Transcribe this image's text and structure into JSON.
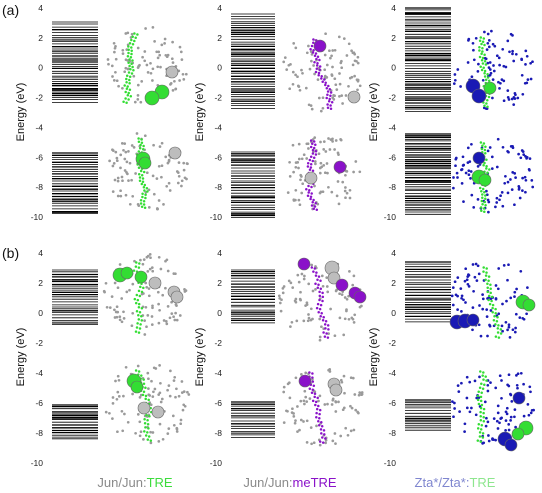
{
  "figure": {
    "panel_labels": [
      "(a)",
      "(b)"
    ],
    "ylabel": "Energy (eV)",
    "yticks": [
      "4",
      "2",
      "0",
      "-2",
      "-4",
      "-6",
      "-8",
      "-10"
    ],
    "captions": [
      {
        "parts": [
          {
            "text": "Jun/Jun:",
            "color": "#8a8a8a"
          },
          {
            "text": "TRE",
            "color": "#3ddc3d"
          }
        ]
      },
      {
        "parts": [
          {
            "text": "Jun/Jun:",
            "color": "#8a8a8a"
          },
          {
            "text": "meTRE",
            "color": "#8a12c9"
          }
        ]
      },
      {
        "parts": [
          {
            "text": "Zta*/Zta*:",
            "color": "#7f86cf"
          },
          {
            "text": "TRE",
            "color": "#8ee68e"
          }
        ]
      }
    ],
    "colors": {
      "jun": "#9a9a9a",
      "tre": "#33dd33",
      "metre": "#8a12c9",
      "zta": "#1a1ab4"
    }
  },
  "chart_data": {
    "type": "energy-level spectra with molecular orbital visualizations",
    "ylabel": "Energy (eV)",
    "ylim": [
      -10,
      4
    ],
    "yticks": [
      4,
      2,
      0,
      -2,
      -4,
      -6,
      -8,
      -10
    ],
    "panels": [
      {
        "label": "(a)",
        "columns": [
          "Jun/Jun:TRE",
          "Jun/Jun:meTRE",
          "Zta*/Zta*:TRE"
        ]
      },
      {
        "label": "(b)",
        "columns": [
          "Jun/Jun:TRE",
          "Jun/Jun:meTRE",
          "Zta*/Zta*:TRE"
        ]
      }
    ]
  }
}
